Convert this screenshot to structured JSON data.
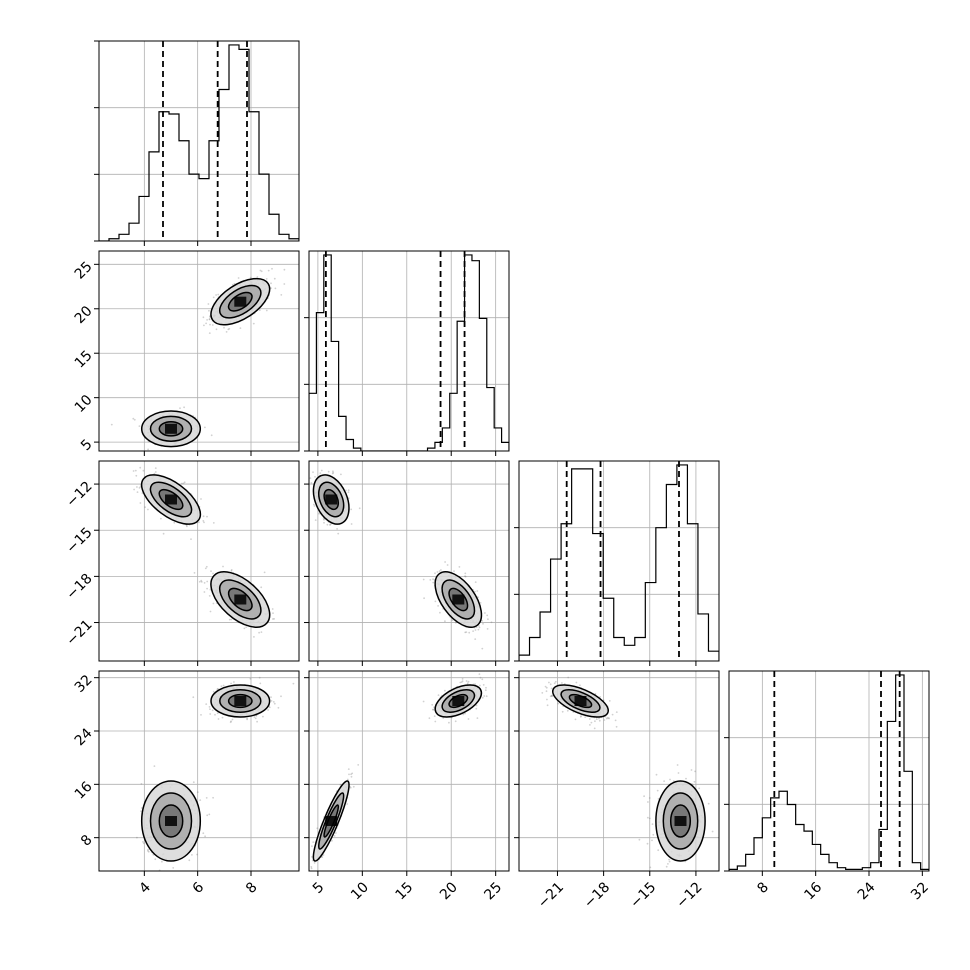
{
  "chart_data": {
    "type": "corner",
    "title": "",
    "n_params": 4,
    "params": [
      {
        "label": "",
        "range": [
          2.3,
          9.8
        ],
        "ticks": [
          4,
          6,
          8
        ],
        "tick_labels": [
          "4",
          "6",
          "8"
        ]
      },
      {
        "label": "",
        "range": [
          4.0,
          26.5
        ],
        "ticks": [
          5,
          10,
          15,
          20,
          25
        ],
        "tick_labels": [
          "5",
          "10",
          "15",
          "20",
          "25"
        ]
      },
      {
        "label": "",
        "range": [
          -23.5,
          -10.5
        ],
        "ticks": [
          -21,
          -18,
          -15,
          -12
        ],
        "tick_labels": [
          "−21",
          "−18",
          "−15",
          "−12"
        ]
      },
      {
        "label": "",
        "range": [
          3,
          33
        ],
        "ticks": [
          8,
          16,
          24,
          32
        ],
        "tick_labels": [
          "8",
          "16",
          "24",
          "32"
        ]
      }
    ],
    "grid": true,
    "histograms": [
      {
        "param": 0,
        "edges": [
          2.3,
          9.8
        ],
        "counts": [
          0,
          1,
          3,
          8,
          20,
          40,
          58,
          57,
          45,
          30,
          28,
          45,
          68,
          88,
          86,
          58,
          30,
          12,
          3,
          1
        ],
        "quantiles": [
          4.7,
          6.75,
          7.85
        ]
      },
      {
        "param": 1,
        "edges": [
          4.0,
          26.5
        ],
        "counts": [
          20,
          48,
          68,
          38,
          12,
          4,
          1,
          0,
          0,
          0,
          0,
          0,
          0,
          0,
          0,
          0,
          1,
          3,
          8,
          20,
          45,
          68,
          66,
          46,
          22,
          8,
          3
        ],
        "quantiles": [
          5.9,
          18.8,
          21.5
        ]
      },
      {
        "param": 2,
        "edges": [
          -23.5,
          -10.5
        ],
        "counts": [
          3,
          12,
          25,
          52,
          70,
          98,
          98,
          65,
          32,
          12,
          8,
          12,
          40,
          68,
          90,
          100,
          70,
          24,
          5
        ],
        "quantiles": [
          -20.4,
          -18.2,
          -13.1
        ]
      },
      {
        "param": 3,
        "edges": [
          3,
          33
        ],
        "counts": [
          1,
          3,
          10,
          20,
          32,
          44,
          48,
          40,
          28,
          24,
          16,
          10,
          5,
          2,
          1,
          1,
          2,
          5,
          25,
          90,
          118,
          60,
          5,
          1
        ],
        "quantiles": [
          9.8,
          25.8,
          28.6
        ]
      }
    ],
    "modes": [
      {
        "center": [
          5.0,
          6.5,
          -13.0,
          10.5
        ],
        "sd": [
          0.55,
          1.0,
          0.8,
          3.0
        ],
        "weight": 0.4
      },
      {
        "center": [
          7.6,
          20.8,
          -19.5,
          28.5
        ],
        "sd": [
          0.55,
          1.3,
          0.9,
          1.2
        ],
        "weight": 0.6
      }
    ],
    "correlations": {
      "0-1": [
        0.0,
        0.55
      ],
      "0-2": [
        -0.6,
        -0.55
      ],
      "0-3": [
        0.0,
        0.0
      ],
      "1-2": [
        -0.35,
        -0.55
      ],
      "1-3": [
        0.9,
        0.5
      ],
      "2-3": [
        0.0,
        -0.6
      ]
    }
  }
}
